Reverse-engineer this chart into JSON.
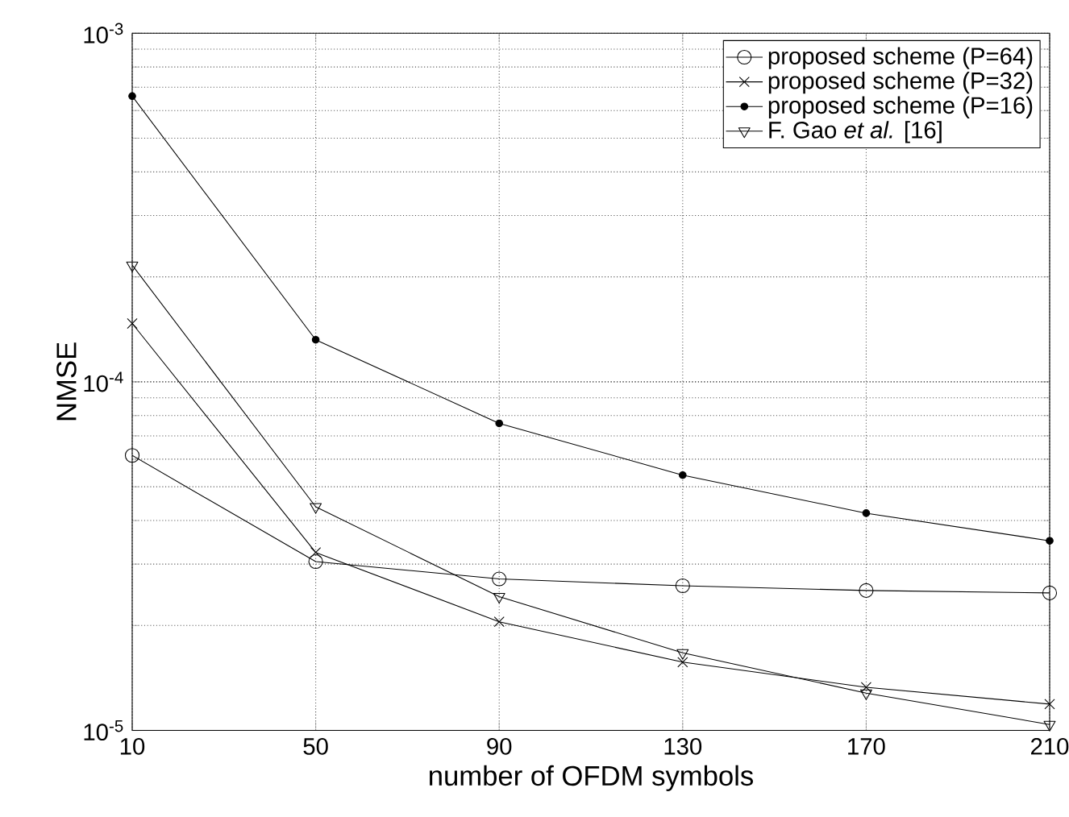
{
  "chart_data": {
    "type": "line",
    "xlabel": "number of OFDM symbols",
    "ylabel": "NMSE",
    "x": [
      10,
      50,
      90,
      130,
      170,
      210
    ],
    "series": [
      {
        "name": "proposed scheme (P=64)",
        "color": "#000000",
        "marker": "circle",
        "values": [
          6.15e-05,
          3.05e-05,
          2.72e-05,
          2.6e-05,
          2.52e-05,
          2.48e-05
        ]
      },
      {
        "name": "proposed scheme (P=32)",
        "color": "#000000",
        "marker": "cross",
        "values": [
          0.000147,
          3.24e-05,
          2.05e-05,
          1.57e-05,
          1.33e-05,
          1.19e-05
        ]
      },
      {
        "name": "proposed scheme (P=16)",
        "color": "#000000",
        "marker": "circle",
        "values": [
          0.00066,
          0.000132,
          7.6e-05,
          5.4e-05,
          4.2e-05,
          3.5e-05
        ]
      },
      {
        "name": "F. Gao *et al.* [16]",
        "color": "#000000",
        "marker": "triangle",
        "values": [
          0.000216,
          4.38e-05,
          2.42e-05,
          1.67e-05,
          1.28e-05,
          1.04e-05
        ]
      }
    ],
    "log": "y",
    "xlim": [
      10,
      210
    ],
    "xticks": [
      10,
      50,
      90,
      130,
      170,
      210
    ],
    "ylim": [
      1e-05,
      0.001
    ],
    "yticks": [
      {
        "value": 1e-05,
        "label": "10$^{-5}$"
      },
      {
        "value": 0.0001,
        "label": "10$^{-4}$"
      },
      {
        "value": 0.001,
        "label": "10$^{-3}$"
      }
    ],
    "grid": true,
    "legend": "top right",
    "line_style": "solid"
  }
}
